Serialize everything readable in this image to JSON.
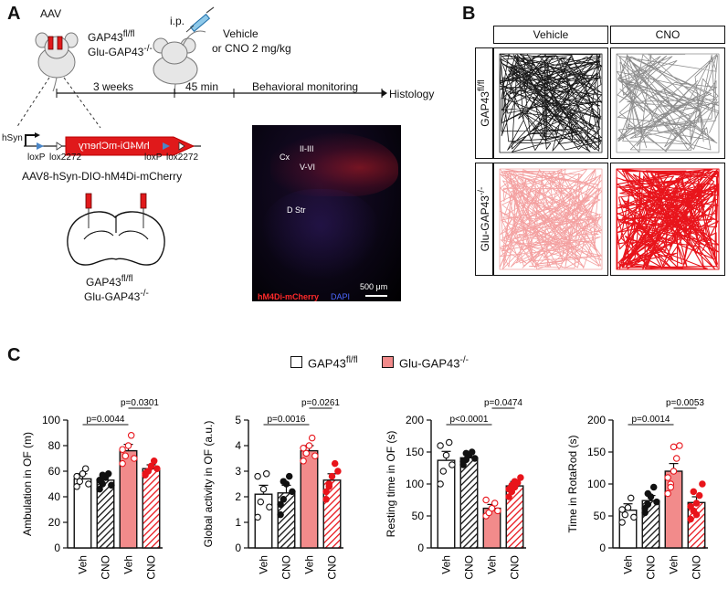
{
  "panel_labels": {
    "a": "A",
    "b": "B",
    "c": "C"
  },
  "panelA": {
    "aav": "AAV",
    "genotype_top": "GAP43",
    "genotype_top_sup": "fl/fl",
    "genotype_bottom": "Glu-GAP43",
    "genotype_bottom_sup": "-/-",
    "ip": "i.p.",
    "vehicle": "Vehicle",
    "cno_dose": "or CNO 2 mg/kg",
    "timeline_3weeks": "3 weeks",
    "timeline_45min": "45 min",
    "timeline_behavior": "Behavioral monitoring",
    "timeline_histology": "Histology",
    "hsyn": "hSyn",
    "construct_label": "hM4Di-mCherry",
    "loxp_left": "loxP",
    "lox2272_left": "lox2272",
    "loxp_right": "loxP",
    "lox2272_right": "lox2272",
    "vector_name": "AAV8-hSyn-DIO-hM4Di-mCherry",
    "brain_geno_top": "GAP43",
    "brain_geno_top_sup": "fl/fl",
    "brain_geno_bottom": "Glu-GAP43",
    "brain_geno_bottom_sup": "-/-",
    "histo": {
      "layer_23": "II-III",
      "cx": "Cx",
      "layer_56": "V-VI",
      "dstr": "D Str",
      "legend_red": "hM4Di-mCherry",
      "legend_blue": "DAPI",
      "scale": "500 μm"
    }
  },
  "panelB": {
    "col_vehicle": "Vehicle",
    "col_cno": "CNO",
    "row1": "GAP43",
    "row1_sup": "fl/fl",
    "row2": "Glu-GAP43",
    "row2_sup": "-/-",
    "colors": {
      "ctrl_veh": "#1a1a1a",
      "ctrl_cno": "#8c8c8c",
      "ko_veh": "#f4a1a1",
      "ko_cno": "#e8141b"
    }
  },
  "panelC": {
    "legend_ctrl": "GAP43",
    "legend_ctrl_sup": "fl/fl",
    "legend_ko": "Glu-GAP43",
    "legend_ko_sup": "-/-",
    "colors": {
      "ko_fill": "#f28b8b",
      "ko_point": "#e8141b",
      "ctrl_fill": "#ffffff",
      "bar_edge": "#111111"
    }
  },
  "chart_data": [
    {
      "type": "bar",
      "ylabel": "Ambulation in OF (m)",
      "categories": [
        "Veh",
        "CNO",
        "Veh",
        "CNO"
      ],
      "values": [
        54,
        53,
        76,
        62
      ],
      "errors": [
        4,
        4,
        5,
        3
      ],
      "ylim": [
        0,
        100
      ],
      "yticks": [
        "0",
        "20",
        "40",
        "60",
        "80",
        "100"
      ],
      "points": [
        [
          48,
          52,
          58,
          62,
          50,
          56
        ],
        [
          46,
          50,
          55,
          58,
          49,
          53,
          57
        ],
        [
          66,
          72,
          80,
          88,
          70,
          77
        ],
        [
          58,
          60,
          64,
          68,
          62,
          57
        ]
      ],
      "comparisons": [
        {
          "from": 0,
          "to": 2,
          "label": "p=0.0044"
        },
        {
          "from": 2,
          "to": 3,
          "label": "p=0.0301"
        }
      ]
    },
    {
      "type": "bar",
      "ylabel": "Global activity in OF (a.u.)",
      "categories": [
        "Veh",
        "CNO",
        "Veh",
        "CNO"
      ],
      "values": [
        2.1,
        2.15,
        3.8,
        2.65
      ],
      "errors": [
        0.35,
        0.3,
        0.2,
        0.25
      ],
      "ylim": [
        0,
        5
      ],
      "yticks": [
        "0",
        "1",
        "2",
        "3",
        "4",
        "5"
      ],
      "points": [
        [
          1.2,
          1.8,
          2.3,
          2.9,
          1.6,
          2.8
        ],
        [
          1.3,
          1.9,
          2.5,
          2.8,
          2.2,
          1.7,
          2.6
        ],
        [
          3.4,
          3.7,
          4.0,
          4.3,
          3.6,
          3.9
        ],
        [
          1.9,
          2.4,
          2.8,
          3.3,
          3.0,
          2.2,
          2.5
        ]
      ],
      "comparisons": [
        {
          "from": 0,
          "to": 2,
          "label": "p=0.0016"
        },
        {
          "from": 2,
          "to": 3,
          "label": "p=0.0261"
        }
      ]
    },
    {
      "type": "bar",
      "ylabel": "Resting time in OF (s)",
      "categories": [
        "Veh",
        "CNO",
        "Veh",
        "CNO"
      ],
      "values": [
        137,
        141,
        62,
        97
      ],
      "errors": [
        14,
        6,
        6,
        7
      ],
      "ylim": [
        0,
        200
      ],
      "yticks": [
        "0",
        "50",
        "100",
        "150",
        "200"
      ],
      "points": [
        [
          100,
          120,
          145,
          165,
          130,
          160
        ],
        [
          130,
          138,
          145,
          150,
          140,
          135,
          148
        ],
        [
          50,
          55,
          62,
          70,
          58,
          75
        ],
        [
          80,
          88,
          95,
          102,
          110,
          92,
          98,
          104
        ]
      ],
      "comparisons": [
        {
          "from": 0,
          "to": 2,
          "label": "p<0.0001"
        },
        {
          "from": 2,
          "to": 3,
          "label": "p=0.0474"
        }
      ]
    },
    {
      "type": "bar",
      "ylabel": "Time in RotaRod (s)",
      "categories": [
        "Veh",
        "CNO",
        "Veh",
        "CNO"
      ],
      "values": [
        59,
        74,
        120,
        71
      ],
      "errors": [
        10,
        8,
        12,
        9
      ],
      "ylim": [
        0,
        200
      ],
      "yticks": [
        "0",
        "50",
        "100",
        "150",
        "200"
      ],
      "points": [
        [
          40,
          52,
          63,
          78,
          48,
          60
        ],
        [
          55,
          68,
          80,
          95,
          72,
          62,
          85
        ],
        [
          85,
          100,
          120,
          140,
          160,
          110,
          95,
          158
        ],
        [
          45,
          58,
          70,
          82,
          100,
          65,
          88,
          52
        ]
      ],
      "comparisons": [
        {
          "from": 0,
          "to": 2,
          "label": "p=0.0014"
        },
        {
          "from": 2,
          "to": 3,
          "label": "p=0.0053"
        }
      ]
    }
  ]
}
